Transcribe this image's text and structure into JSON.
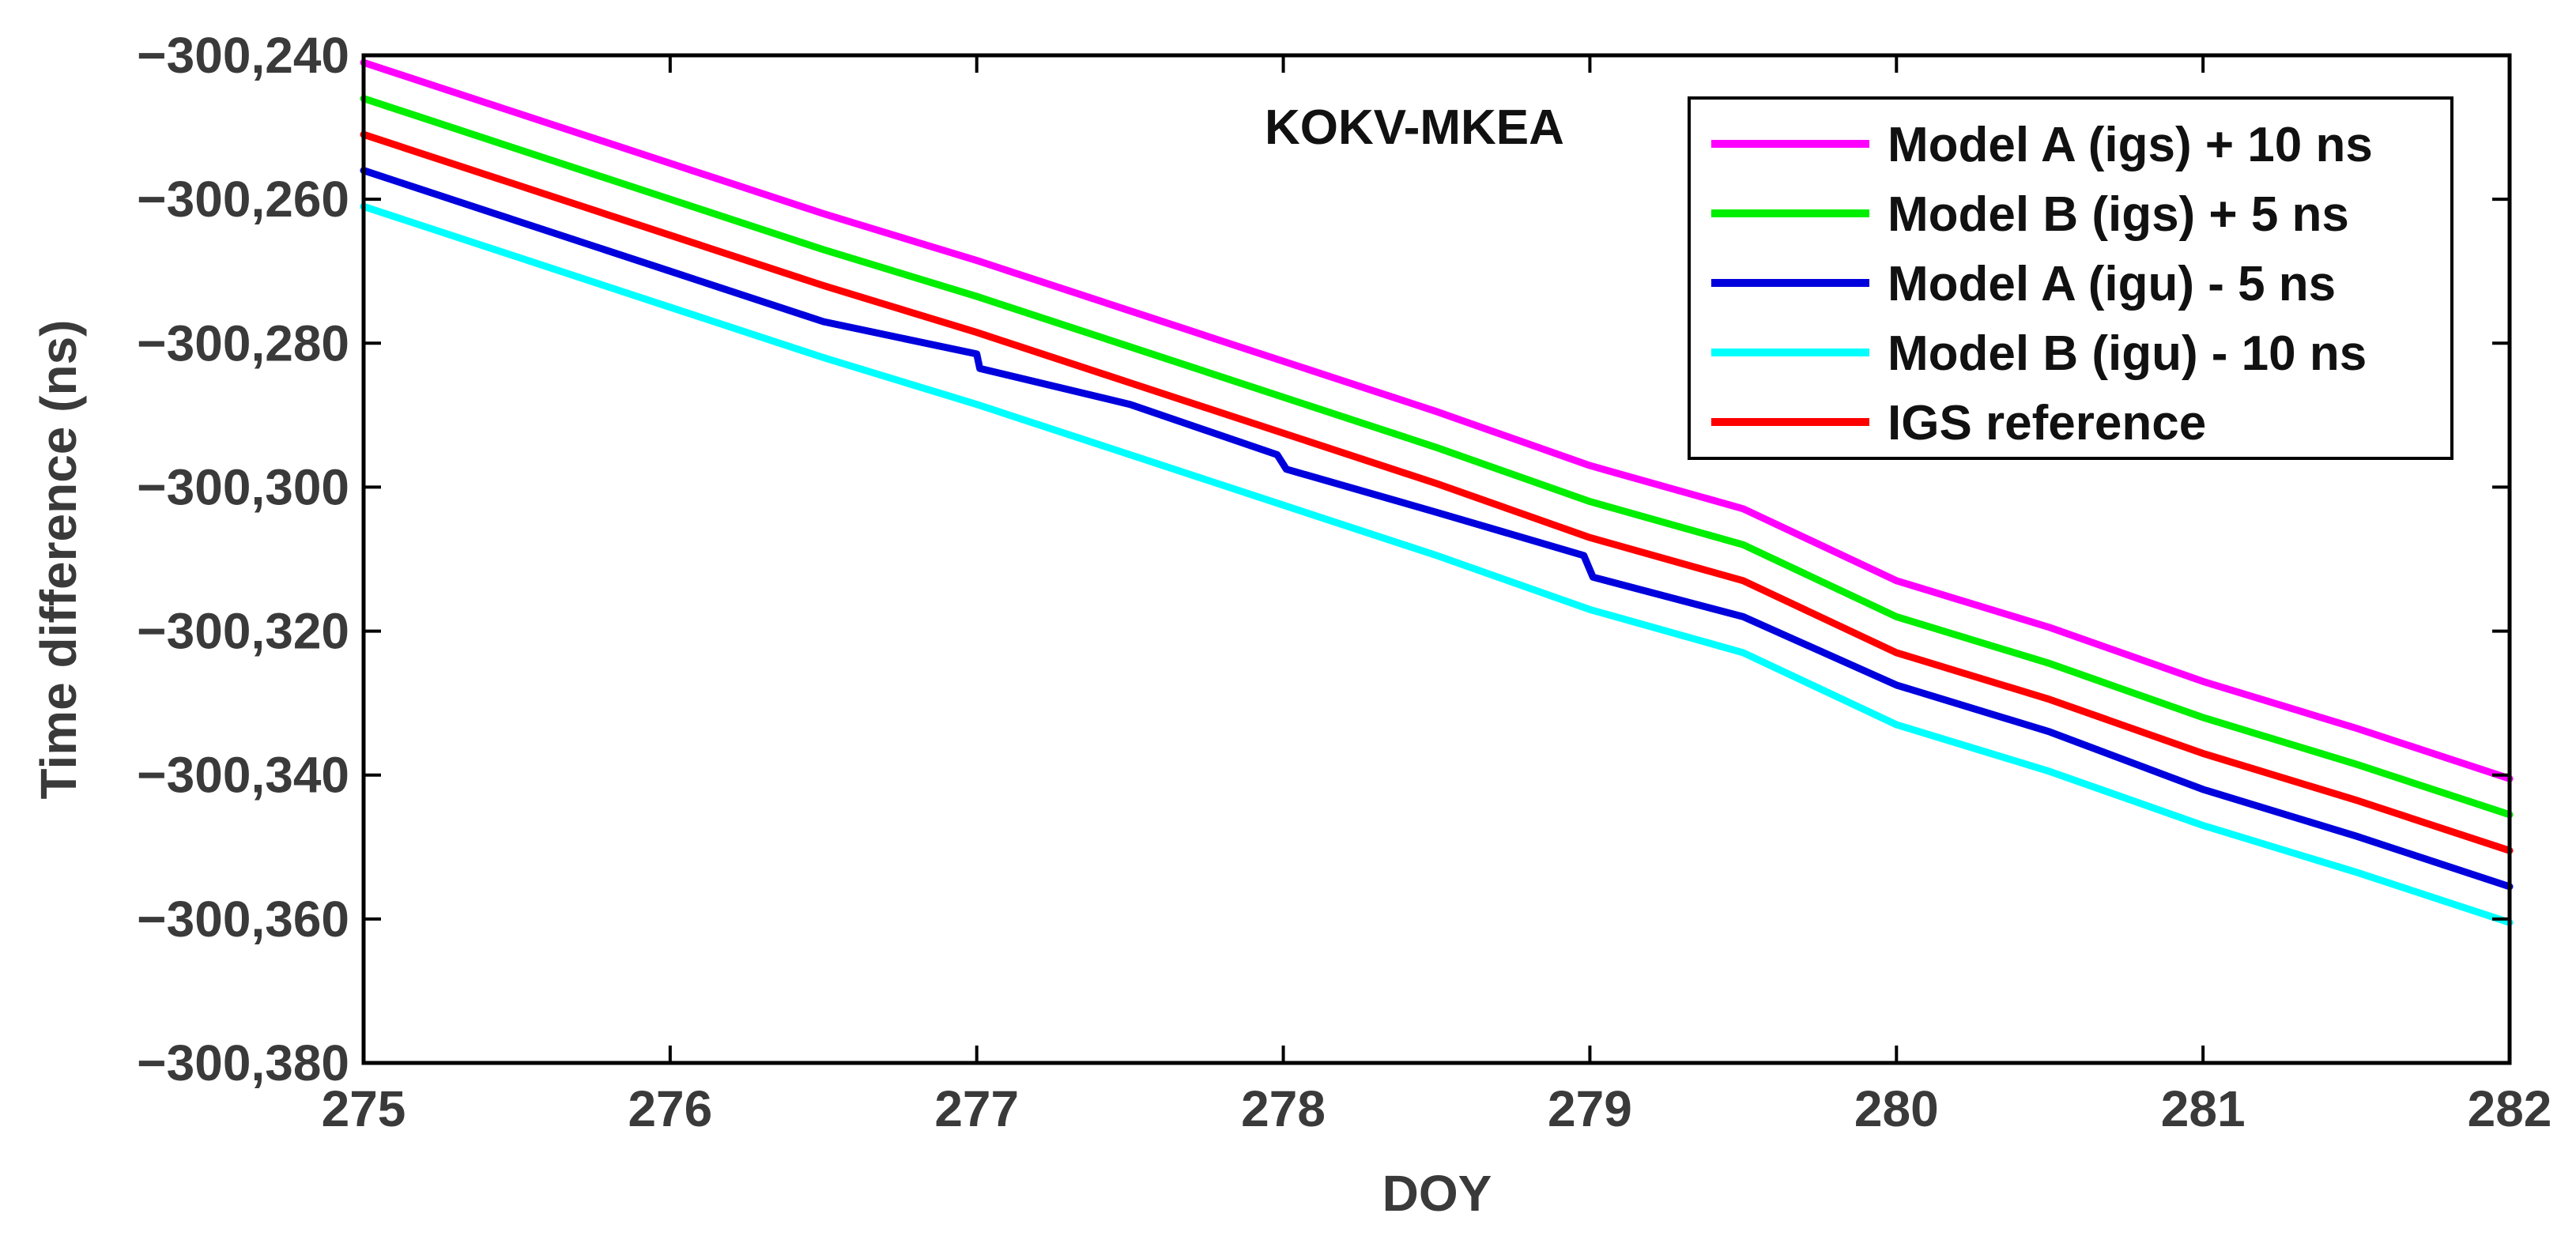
{
  "chart_data": {
    "type": "line",
    "title": "",
    "annotation": "KOKV-MKEA",
    "xlabel": "DOY",
    "ylabel": "Time difference (ns)",
    "xlim": [
      275,
      282
    ],
    "ylim": [
      -300380,
      -300240
    ],
    "xticks": [
      275,
      276,
      277,
      278,
      279,
      280,
      281,
      282
    ],
    "xtick_labels": [
      "275",
      "276",
      "277",
      "278",
      "279",
      "280",
      "281",
      "282"
    ],
    "yticks": [
      -300240,
      -300260,
      -300280,
      -300300,
      -300320,
      -300340,
      -300360,
      -300380
    ],
    "ytick_labels": [
      "−300,240",
      "−300,260",
      "−300,280",
      "−300,300",
      "−300,320",
      "−300,340",
      "−300,360",
      "−300,380"
    ],
    "grid": false,
    "legend_position": "top-right",
    "series": [
      {
        "name": "Model A (igs) + 10 ns",
        "color": "#ff00ff",
        "x": [
          275,
          275.5,
          276,
          276.5,
          277,
          277.5,
          278,
          278.5,
          279,
          279.5,
          280,
          280.5,
          281,
          281.5,
          282
        ],
        "y": [
          -300241,
          -300248,
          -300255,
          -300262,
          -300268.5,
          -300275.5,
          -300282.5,
          -300289.5,
          -300297,
          -300303,
          -300313,
          -300319.5,
          -300327,
          -300333.5,
          -300340.5
        ]
      },
      {
        "name": "Model B (igs) + 5 ns",
        "color": "#00ee00",
        "x": [
          275,
          275.5,
          276,
          276.5,
          277,
          277.5,
          278,
          278.5,
          279,
          279.5,
          280,
          280.5,
          281,
          281.5,
          282
        ],
        "y": [
          -300246,
          -300253,
          -300260,
          -300267,
          -300273.5,
          -300280.5,
          -300287.5,
          -300294.5,
          -300302,
          -300308,
          -300318,
          -300324.5,
          -300332,
          -300338.5,
          -300345.5
        ]
      },
      {
        "name": "Model A (igu) - 5 ns",
        "color": "#0000dd",
        "x": [
          275,
          275.5,
          276,
          276.5,
          277,
          277.01,
          277.5,
          277.98,
          278.01,
          278.5,
          278.98,
          279.01,
          279.5,
          280,
          280.5,
          281,
          281.5,
          282
        ],
        "y": [
          -300256,
          -300263,
          -300270,
          -300277,
          -300281.5,
          -300283.5,
          -300288.5,
          -300295.5,
          -300297.5,
          -300303.5,
          -300309.5,
          -300312.5,
          -300318,
          -300327.5,
          -300334,
          -300342,
          -300348.5,
          -300355.5
        ]
      },
      {
        "name": "Model B (igu) - 10 ns",
        "color": "#00ffff",
        "x": [
          275,
          275.5,
          276,
          276.5,
          277,
          277.5,
          278,
          278.5,
          279,
          279.5,
          280,
          280.5,
          281,
          281.5,
          282
        ],
        "y": [
          -300261,
          -300268,
          -300275,
          -300282,
          -300288.5,
          -300295.5,
          -300302.5,
          -300309.5,
          -300317,
          -300323,
          -300333,
          -300339.5,
          -300347,
          -300353.5,
          -300360.5
        ]
      },
      {
        "name": "IGS reference",
        "color": "#ff0000",
        "x": [
          275,
          275.5,
          276,
          276.5,
          277,
          277.5,
          278,
          278.5,
          279,
          279.5,
          280,
          280.5,
          281,
          281.5,
          282
        ],
        "y": [
          -300251,
          -300258,
          -300265,
          -300272,
          -300278.5,
          -300285.5,
          -300292.5,
          -300299.5,
          -300307,
          -300313,
          -300323,
          -300329.5,
          -300337,
          -300343.5,
          -300350.5
        ]
      }
    ]
  }
}
